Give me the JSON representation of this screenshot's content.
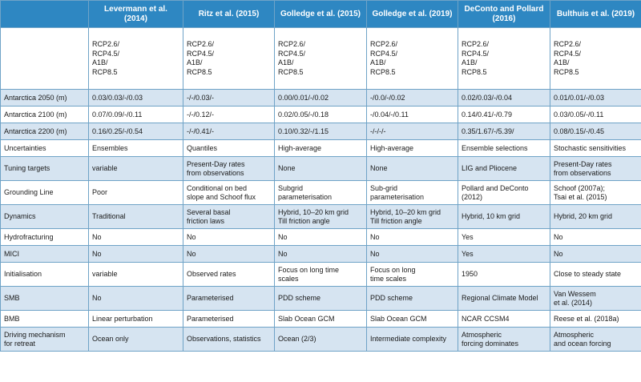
{
  "table": {
    "columns": [
      "Levermann et al. (2014)",
      "Ritz et al. (2015)",
      "Golledge et al. (2015)",
      "Golledge et al. (2019)",
      "DeConto and Pollard (2016)",
      "Bulthuis et al. (2019)"
    ],
    "scenarios": [
      [
        "RCP2.6/",
        "RCP4.5/",
        "A1B/",
        "RCP8.5"
      ],
      [
        "RCP2.6/",
        "RCP4.5/",
        "A1B/",
        "RCP8.5"
      ],
      [
        "RCP2.6/",
        "RCP4.5/",
        "A1B/",
        "RCP8.5"
      ],
      [
        "RCP2.6/",
        "RCP4.5/",
        "A1B/",
        "RCP8.5"
      ],
      [
        "RCP2.6/",
        "RCP4.5/",
        "A1B/",
        "RCP8.5"
      ],
      [
        "RCP2.6/",
        "RCP4.5/",
        "A1B/",
        "RCP8.5"
      ]
    ],
    "rows": [
      {
        "label": "Antarctica 2050 (m)",
        "cells": [
          [
            "0.03/0.03/-/0.03"
          ],
          [
            "-/-/0.03/-"
          ],
          [
            "0.00/0.01/-/0.02"
          ],
          [
            "-/0.0/-/0.02"
          ],
          [
            "0.02/0.03/-/0.04"
          ],
          [
            "0.01/0.01/-/0.03"
          ]
        ]
      },
      {
        "label": "Antarctica 2100 (m)",
        "cells": [
          [
            "0.07/0.09/-/0.11"
          ],
          [
            "-/-/0.12/-"
          ],
          [
            "0.02/0.05/-/0.18"
          ],
          [
            "-/0.04/-/0.11"
          ],
          [
            "0.14/0.41/-/0.79"
          ],
          [
            "0.03/0.05/-/0.11"
          ]
        ]
      },
      {
        "label": "Antarctica 2200 (m)",
        "cells": [
          [
            "0.16/0.25/-/0.54"
          ],
          [
            "-/-/0.41/-"
          ],
          [
            "0.10/0.32/-/1.15"
          ],
          [
            "-/-/-/-"
          ],
          [
            "0.35/1.67/-/5.39/"
          ],
          [
            "0.08/0.15/-/0.45"
          ]
        ]
      },
      {
        "label": "Uncertainties",
        "cells": [
          [
            "Ensembles"
          ],
          [
            "Quantiles"
          ],
          [
            "High-average"
          ],
          [
            "High-average"
          ],
          [
            "Ensemble selections"
          ],
          [
            "Stochastic sensitivities"
          ]
        ]
      },
      {
        "label": "Tuning targets",
        "cells": [
          [
            "variable"
          ],
          [
            "Present-Day rates",
            "from observations"
          ],
          [
            "None"
          ],
          [
            "None"
          ],
          [
            "LIG and Pliocene"
          ],
          [
            "Present-Day rates",
            "from observations"
          ]
        ]
      },
      {
        "label": "Grounding Line",
        "cells": [
          [
            "Poor"
          ],
          [
            "Conditional on bed",
            "slope and Schoof flux"
          ],
          [
            "Subgrid",
            "parameterisation"
          ],
          [
            "Sub-grid",
            "parameterisation"
          ],
          [
            "Pollard and DeConto",
            "(2012)"
          ],
          [
            "Schoof (2007a);",
            "Tsai et al. (2015)"
          ]
        ]
      },
      {
        "label": "Dynamics",
        "cells": [
          [
            "Traditional"
          ],
          [
            "Several basal",
            "friction laws"
          ],
          [
            "Hybrid, 10–20 km grid",
            "Till friction angle"
          ],
          [
            "Hybrid, 10–20 km grid",
            "Till friction angle"
          ],
          [
            "Hybrid, 10 km grid"
          ],
          [
            "Hybrid, 20 km grid"
          ]
        ]
      },
      {
        "label": "Hydrofracturing",
        "cells": [
          [
            "No"
          ],
          [
            "No"
          ],
          [
            "No"
          ],
          [
            "No"
          ],
          [
            "Yes"
          ],
          [
            "No"
          ]
        ]
      },
      {
        "label": "MICI",
        "cells": [
          [
            "No"
          ],
          [
            "No"
          ],
          [
            "No"
          ],
          [
            "No"
          ],
          [
            "Yes"
          ],
          [
            "No"
          ]
        ]
      },
      {
        "label": "Initialisation",
        "cells": [
          [
            "variable"
          ],
          [
            "Observed rates"
          ],
          [
            "Focus on long time",
            "scales"
          ],
          [
            "Focus on long",
            "time scales"
          ],
          [
            "1950"
          ],
          [
            "Close to steady state"
          ]
        ]
      },
      {
        "label": "SMB",
        "cells": [
          [
            "No"
          ],
          [
            "Parameterised"
          ],
          [
            "PDD scheme"
          ],
          [
            "PDD scheme"
          ],
          [
            "Regional Climate Model"
          ],
          [
            "Van Wessem",
            "et al. (2014)"
          ]
        ]
      },
      {
        "label": "BMB",
        "cells": [
          [
            "Linear perturbation"
          ],
          [
            "Parameterised"
          ],
          [
            "Slab Ocean GCM"
          ],
          [
            "Slab Ocean GCM"
          ],
          [
            "NCAR CCSM4"
          ],
          [
            "Reese et al. (2018a)"
          ]
        ]
      },
      {
        "label": [
          "Driving mechanism",
          "for retreat"
        ],
        "cells": [
          [
            "Ocean only"
          ],
          [
            "Observations, statistics"
          ],
          [
            "Ocean (2/3)"
          ],
          [
            "Intermediate complexity"
          ],
          [
            "Atmospheric",
            "forcing dominates"
          ],
          [
            "Atmospheric",
            "and ocean forcing"
          ]
        ]
      }
    ]
  }
}
